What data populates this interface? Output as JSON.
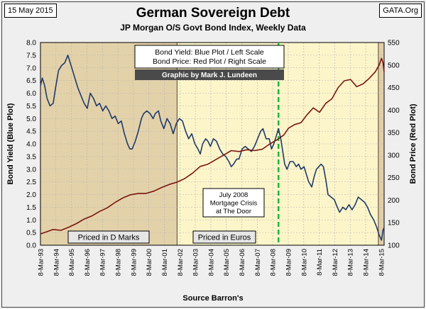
{
  "header": {
    "date": "15 May 2015",
    "source_tag": "GATA.Org",
    "title": "German Sovereign Debt",
    "subtitle": "JP Morgan O/S Govt Bond Index, Weekly Data"
  },
  "footer": {
    "source": "Source Barron's"
  },
  "colors": {
    "background": "#efefef",
    "plot_yield": "#1f3a6b",
    "plot_price": "#7a1510",
    "dmark_shading": "#e3d2a9",
    "euro_shading": "#fcf5c9",
    "crisis_line": "#22b33a",
    "banner": "#4a4a4a"
  },
  "chart_data": {
    "type": "line",
    "title": "German Sovereign Debt",
    "subtitle": "JP Morgan O/S Govt Bond Index, Weekly Data",
    "ylabel_left": "Bond Yield (Blue Plot)",
    "ylabel_right": "Bond Price (Red Plot)",
    "ylim_left": [
      0,
      8
    ],
    "ylim_right": [
      100,
      550
    ],
    "xlim": [
      1993.18,
      2015.37
    ],
    "x_ticks": [
      {
        "x": 1993.18,
        "label": "8-Mar-93"
      },
      {
        "x": 1994.18,
        "label": "8-Mar-94"
      },
      {
        "x": 1995.18,
        "label": "8-Mar-95"
      },
      {
        "x": 1996.18,
        "label": "8-Mar-96"
      },
      {
        "x": 1997.18,
        "label": "8-Mar-97"
      },
      {
        "x": 1998.18,
        "label": "8-Mar-98"
      },
      {
        "x": 1999.18,
        "label": "8-Mar-99"
      },
      {
        "x": 2000.18,
        "label": "8-Mar-00"
      },
      {
        "x": 2001.18,
        "label": "8-Mar-01"
      },
      {
        "x": 2002.18,
        "label": "8-Mar-02"
      },
      {
        "x": 2003.18,
        "label": "8-Mar-03"
      },
      {
        "x": 2004.18,
        "label": "8-Mar-04"
      },
      {
        "x": 2005.18,
        "label": "8-Mar-05"
      },
      {
        "x": 2006.18,
        "label": "8-Mar-06"
      },
      {
        "x": 2007.18,
        "label": "8-Mar-07"
      },
      {
        "x": 2008.18,
        "label": "8-Mar-08"
      },
      {
        "x": 2009.18,
        "label": "8-Mar-09"
      },
      {
        "x": 2010.18,
        "label": "8-Mar-10"
      },
      {
        "x": 2011.18,
        "label": "8-Mar-11"
      },
      {
        "x": 2012.18,
        "label": "8-Mar-12"
      },
      {
        "x": 2013.18,
        "label": "8-Mar-13"
      },
      {
        "x": 2014.18,
        "label": "8-Mar-14"
      },
      {
        "x": 2015.18,
        "label": "8-Mar-15"
      }
    ],
    "y_ticks_left": [
      "0.0",
      "0.5",
      "1.0",
      "1.5",
      "2.0",
      "2.5",
      "3.0",
      "3.5",
      "4.0",
      "4.5",
      "5.0",
      "5.5",
      "6.0",
      "6.5",
      "7.0",
      "7.5",
      "8.0"
    ],
    "y_ticks_right": [
      "100",
      "150",
      "200",
      "250",
      "300",
      "350",
      "400",
      "450",
      "500",
      "550"
    ],
    "grid": true,
    "legend_text": [
      "Bond Yield: Blue Plot / Left Scale",
      "Bond Price: Red Plot / Right Scale"
    ],
    "credit": "Graphic by Mark J. Lundeen",
    "regions": [
      {
        "from": 1993.18,
        "to": 2002.0,
        "label": "Priced in D Marks"
      },
      {
        "from": 2002.0,
        "to": 2015.37,
        "label": "Priced in Euros"
      }
    ],
    "crisis_marker": {
      "x": 2008.55,
      "lines": [
        "July 2008",
        "Mortgage Crisis",
        "at The Door"
      ]
    },
    "series": [
      {
        "name": "Bond Yield",
        "axis": "left",
        "points": [
          [
            1993.18,
            6.3
          ],
          [
            1993.3,
            6.6
          ],
          [
            1993.45,
            6.3
          ],
          [
            1993.6,
            5.8
          ],
          [
            1993.8,
            5.5
          ],
          [
            1994.0,
            5.6
          ],
          [
            1994.15,
            6.2
          ],
          [
            1994.35,
            6.9
          ],
          [
            1994.55,
            7.1
          ],
          [
            1994.75,
            7.2
          ],
          [
            1994.95,
            7.5
          ],
          [
            1995.1,
            7.2
          ],
          [
            1995.25,
            6.9
          ],
          [
            1995.45,
            6.5
          ],
          [
            1995.6,
            6.2
          ],
          [
            1995.8,
            5.9
          ],
          [
            1996.0,
            5.6
          ],
          [
            1996.2,
            5.4
          ],
          [
            1996.4,
            6.0
          ],
          [
            1996.6,
            5.8
          ],
          [
            1996.8,
            5.5
          ],
          [
            1997.0,
            5.6
          ],
          [
            1997.2,
            5.3
          ],
          [
            1997.4,
            5.5
          ],
          [
            1997.6,
            5.3
          ],
          [
            1997.8,
            5.0
          ],
          [
            1998.0,
            5.1
          ],
          [
            1998.2,
            4.8
          ],
          [
            1998.4,
            4.9
          ],
          [
            1998.6,
            4.4
          ],
          [
            1998.8,
            4.0
          ],
          [
            1998.95,
            3.8
          ],
          [
            1999.1,
            3.8
          ],
          [
            1999.3,
            4.1
          ],
          [
            1999.5,
            4.5
          ],
          [
            1999.7,
            5.0
          ],
          [
            1999.85,
            5.2
          ],
          [
            2000.05,
            5.3
          ],
          [
            2000.25,
            5.2
          ],
          [
            2000.45,
            5.0
          ],
          [
            2000.6,
            5.2
          ],
          [
            2000.8,
            5.3
          ],
          [
            2000.95,
            4.9
          ],
          [
            2001.15,
            4.6
          ],
          [
            2001.35,
            5.0
          ],
          [
            2001.55,
            4.8
          ],
          [
            2001.75,
            4.4
          ],
          [
            2001.95,
            4.8
          ],
          [
            2002.15,
            5.0
          ],
          [
            2002.35,
            4.9
          ],
          [
            2002.55,
            4.5
          ],
          [
            2002.75,
            4.2
          ],
          [
            2002.95,
            4.4
          ],
          [
            2003.15,
            4.0
          ],
          [
            2003.35,
            3.8
          ],
          [
            2003.5,
            3.6
          ],
          [
            2003.65,
            4.0
          ],
          [
            2003.85,
            4.2
          ],
          [
            2004.0,
            4.1
          ],
          [
            2004.15,
            3.9
          ],
          [
            2004.35,
            4.2
          ],
          [
            2004.55,
            4.1
          ],
          [
            2004.75,
            3.8
          ],
          [
            2004.95,
            3.6
          ],
          [
            2005.15,
            3.5
          ],
          [
            2005.35,
            3.3
          ],
          [
            2005.5,
            3.1
          ],
          [
            2005.65,
            3.2
          ],
          [
            2005.85,
            3.4
          ],
          [
            2006.0,
            3.4
          ],
          [
            2006.2,
            3.8
          ],
          [
            2006.4,
            3.9
          ],
          [
            2006.6,
            3.8
          ],
          [
            2006.8,
            3.7
          ],
          [
            2007.0,
            3.9
          ],
          [
            2007.2,
            4.2
          ],
          [
            2007.4,
            4.5
          ],
          [
            2007.55,
            4.6
          ],
          [
            2007.75,
            4.2
          ],
          [
            2007.95,
            4.2
          ],
          [
            2008.1,
            3.8
          ],
          [
            2008.25,
            4.0
          ],
          [
            2008.4,
            4.3
          ],
          [
            2008.55,
            4.6
          ],
          [
            2008.7,
            4.2
          ],
          [
            2008.85,
            3.6
          ],
          [
            2008.95,
            3.2
          ],
          [
            2009.1,
            3.0
          ],
          [
            2009.3,
            3.3
          ],
          [
            2009.5,
            3.3
          ],
          [
            2009.7,
            3.1
          ],
          [
            2009.85,
            3.2
          ],
          [
            2010.0,
            3.0
          ],
          [
            2010.2,
            3.1
          ],
          [
            2010.35,
            2.8
          ],
          [
            2010.5,
            2.5
          ],
          [
            2010.7,
            2.3
          ],
          [
            2010.85,
            2.7
          ],
          [
            2011.0,
            3.0
          ],
          [
            2011.15,
            3.1
          ],
          [
            2011.3,
            3.2
          ],
          [
            2011.45,
            3.1
          ],
          [
            2011.6,
            2.6
          ],
          [
            2011.75,
            2.0
          ],
          [
            2011.95,
            1.9
          ],
          [
            2012.15,
            1.8
          ],
          [
            2012.35,
            1.5
          ],
          [
            2012.5,
            1.3
          ],
          [
            2012.7,
            1.5
          ],
          [
            2012.9,
            1.4
          ],
          [
            2013.1,
            1.6
          ],
          [
            2013.3,
            1.4
          ],
          [
            2013.5,
            1.6
          ],
          [
            2013.7,
            1.9
          ],
          [
            2013.9,
            1.8
          ],
          [
            2014.1,
            1.7
          ],
          [
            2014.3,
            1.5
          ],
          [
            2014.5,
            1.2
          ],
          [
            2014.7,
            1.0
          ],
          [
            2014.9,
            0.7
          ],
          [
            2015.05,
            0.4
          ],
          [
            2015.2,
            0.2
          ],
          [
            2015.3,
            0.6
          ],
          [
            2015.37,
            0.7
          ]
        ]
      },
      {
        "name": "Bond Price",
        "axis": "right",
        "points": [
          [
            1993.18,
            125
          ],
          [
            1993.6,
            130
          ],
          [
            1994.0,
            135
          ],
          [
            1994.5,
            133
          ],
          [
            1995.0,
            140
          ],
          [
            1995.5,
            148
          ],
          [
            1996.0,
            158
          ],
          [
            1996.5,
            165
          ],
          [
            1997.0,
            175
          ],
          [
            1997.5,
            183
          ],
          [
            1998.0,
            195
          ],
          [
            1998.5,
            205
          ],
          [
            1999.0,
            212
          ],
          [
            1999.5,
            215
          ],
          [
            2000.0,
            215
          ],
          [
            2000.5,
            220
          ],
          [
            2001.0,
            228
          ],
          [
            2001.5,
            235
          ],
          [
            2002.0,
            240
          ],
          [
            2002.5,
            248
          ],
          [
            2003.0,
            260
          ],
          [
            2003.5,
            275
          ],
          [
            2004.0,
            280
          ],
          [
            2004.5,
            290
          ],
          [
            2005.0,
            300
          ],
          [
            2005.5,
            310
          ],
          [
            2006.0,
            308
          ],
          [
            2006.5,
            312
          ],
          [
            2007.0,
            310
          ],
          [
            2007.5,
            313
          ],
          [
            2008.0,
            325
          ],
          [
            2008.5,
            335
          ],
          [
            2008.9,
            345
          ],
          [
            2009.2,
            360
          ],
          [
            2009.6,
            368
          ],
          [
            2010.0,
            372
          ],
          [
            2010.4,
            390
          ],
          [
            2010.8,
            405
          ],
          [
            2011.2,
            395
          ],
          [
            2011.6,
            415
          ],
          [
            2012.0,
            425
          ],
          [
            2012.4,
            450
          ],
          [
            2012.8,
            465
          ],
          [
            2013.2,
            468
          ],
          [
            2013.6,
            452
          ],
          [
            2014.0,
            458
          ],
          [
            2014.4,
            470
          ],
          [
            2014.8,
            485
          ],
          [
            2015.05,
            500
          ],
          [
            2015.2,
            515
          ],
          [
            2015.3,
            505
          ],
          [
            2015.37,
            485
          ]
        ]
      }
    ]
  }
}
